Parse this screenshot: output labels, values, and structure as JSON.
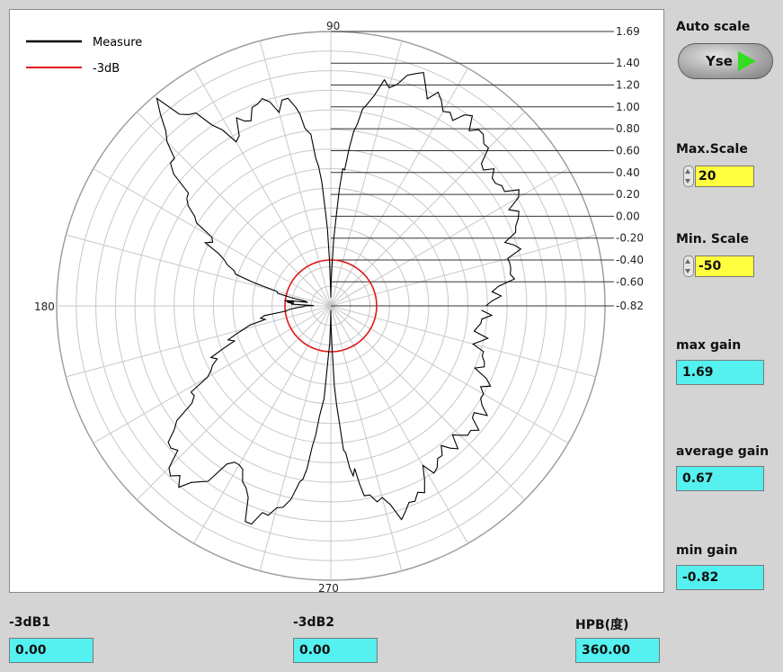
{
  "controls": {
    "auto_scale_label": "Auto scale",
    "auto_scale_value": "Yse",
    "max_scale_label": "Max.Scale",
    "max_scale_value": "20",
    "min_scale_label": "Min. Scale",
    "min_scale_value": "-50"
  },
  "stats": {
    "max_gain_label": "max gain",
    "max_gain_value": "1.69",
    "average_gain_label": "average gain",
    "average_gain_value": "0.67",
    "min_gain_label": "min gain",
    "min_gain_value": "-0.82"
  },
  "bottom": {
    "db1_label": "-3dB1",
    "db1_value": "0.00",
    "db2_label": "-3dB2",
    "db2_value": "0.00",
    "hpb_label": "HPB(度)",
    "hpb_value": "360.00"
  },
  "colors": {
    "measure": "#000000",
    "minus3db": "#e01818",
    "grid": "#c8c8c8",
    "value_box": "#55f0f0",
    "input_box": "#ffff40"
  },
  "chart_data": {
    "type": "polar-line",
    "title": "",
    "angle_labels": [
      "90",
      "180",
      "270"
    ],
    "radial_tick_labels": [
      "1.69",
      "1.40",
      "1.20",
      "1.00",
      "0.80",
      "0.60",
      "0.40",
      "0.20",
      "0.00",
      "-0.20",
      "-0.40",
      "-0.60",
      "-0.82"
    ],
    "radial_range": [
      -0.82,
      1.69
    ],
    "grid": true,
    "legend_position": "top-left",
    "legend": [
      "Measure",
      "-3dB"
    ],
    "series": [
      {
        "name": "Measure",
        "points": [
          {
            "angle": 0,
            "value": 0.6
          },
          {
            "angle": 10,
            "value": 0.85
          },
          {
            "angle": 20,
            "value": 0.95
          },
          {
            "angle": 30,
            "value": 1.15
          },
          {
            "angle": 40,
            "value": 1.05
          },
          {
            "angle": 50,
            "value": 1.3
          },
          {
            "angle": 60,
            "value": 1.25
          },
          {
            "angle": 70,
            "value": 1.45
          },
          {
            "angle": 80,
            "value": 1.1
          },
          {
            "angle": 85,
            "value": 0.4
          },
          {
            "angle": 90,
            "value": -0.82
          },
          {
            "angle": 95,
            "value": 0.5
          },
          {
            "angle": 100,
            "value": 1.05
          },
          {
            "angle": 110,
            "value": 1.15
          },
          {
            "angle": 120,
            "value": 0.95
          },
          {
            "angle": 130,
            "value": 1.6
          },
          {
            "angle": 140,
            "value": 1.0
          },
          {
            "angle": 150,
            "value": 0.5
          },
          {
            "angle": 160,
            "value": 0.15
          },
          {
            "angle": 170,
            "value": -0.6
          },
          {
            "angle": 175,
            "value": -0.4
          },
          {
            "angle": 180,
            "value": -0.65
          },
          {
            "angle": 190,
            "value": -0.2
          },
          {
            "angle": 200,
            "value": 0.2
          },
          {
            "angle": 210,
            "value": 0.5
          },
          {
            "angle": 220,
            "value": 1.1
          },
          {
            "angle": 230,
            "value": 1.35
          },
          {
            "angle": 240,
            "value": 0.8
          },
          {
            "angle": 250,
            "value": 1.3
          },
          {
            "angle": 260,
            "value": 0.9
          },
          {
            "angle": 265,
            "value": 0.1
          },
          {
            "angle": 270,
            "value": -0.82
          },
          {
            "angle": 275,
            "value": 0.5
          },
          {
            "angle": 280,
            "value": 0.9
          },
          {
            "angle": 290,
            "value": 1.2
          },
          {
            "angle": 300,
            "value": 0.95
          },
          {
            "angle": 310,
            "value": 0.85
          },
          {
            "angle": 320,
            "value": 0.9
          },
          {
            "angle": 330,
            "value": 0.8
          },
          {
            "angle": 340,
            "value": 0.65
          },
          {
            "angle": 350,
            "value": 0.55
          },
          {
            "angle": 360,
            "value": 0.6
          }
        ]
      },
      {
        "name": "-3dB",
        "points": [
          {
            "angle": 0,
            "value": -0.4
          },
          {
            "angle": 360,
            "value": -0.4
          }
        ]
      }
    ]
  }
}
